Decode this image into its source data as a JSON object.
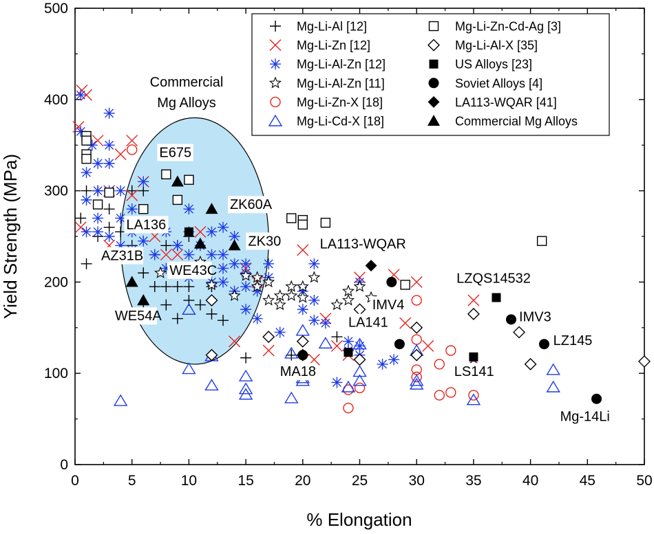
{
  "chart_data": {
    "type": "scatter",
    "title": "",
    "xlabel": "% Elongation",
    "ylabel": "Yield Strength (MPa)",
    "xlim": [
      0,
      50
    ],
    "ylim": [
      0,
      500
    ],
    "xticks": [
      "0",
      "5",
      "10",
      "15",
      "20",
      "25",
      "30",
      "35",
      "40",
      "45",
      "50"
    ],
    "yticks": [
      "0",
      "100",
      "200",
      "300",
      "400",
      "500"
    ],
    "legend_position": "top-right",
    "region": {
      "label_line1": "Commercial",
      "label_line2": "Mg Alloys",
      "color": "#bde3f7",
      "cx": 10.5,
      "cy": 245,
      "rx": 6.5,
      "ry": 135
    },
    "series": [
      {
        "name": "Mg-Li-Al [12]",
        "marker": "plus",
        "color": "#000000",
        "points": [
          [
            0.5,
            270
          ],
          [
            1,
            300
          ],
          [
            1,
            220
          ],
          [
            2,
            300
          ],
          [
            2,
            250
          ],
          [
            3,
            280
          ],
          [
            3,
            260
          ],
          [
            4,
            255
          ],
          [
            5,
            240
          ],
          [
            5,
            300
          ],
          [
            6,
            300
          ],
          [
            6,
            210
          ],
          [
            6,
            175
          ],
          [
            7,
            230
          ],
          [
            7,
            195
          ],
          [
            8,
            240
          ],
          [
            8,
            195
          ],
          [
            8,
            175
          ],
          [
            9,
            240
          ],
          [
            9,
            195
          ],
          [
            9,
            160
          ],
          [
            10,
            250
          ],
          [
            10,
            195
          ],
          [
            10,
            180
          ],
          [
            11,
            175
          ],
          [
            12,
            195
          ],
          [
            12,
            165
          ],
          [
            13,
            158
          ],
          [
            15,
            117
          ],
          [
            19,
            120
          ],
          [
            23,
            140
          ]
        ]
      },
      {
        "name": "Mg-Li-Zn [12]",
        "marker": "x",
        "color": "#e8231d",
        "points": [
          [
            0.3,
            370
          ],
          [
            0.5,
            260
          ],
          [
            0.6,
            410
          ],
          [
            1,
            405
          ],
          [
            2,
            355
          ],
          [
            3,
            300
          ],
          [
            3,
            240
          ],
          [
            4,
            340
          ],
          [
            5,
            355
          ],
          [
            5,
            295
          ],
          [
            6,
            310
          ],
          [
            7,
            250
          ],
          [
            8,
            230
          ],
          [
            9,
            230
          ],
          [
            11,
            255
          ],
          [
            14,
            135
          ],
          [
            15,
            215
          ],
          [
            16,
            200
          ],
          [
            17,
            125
          ],
          [
            20,
            235
          ],
          [
            21,
            115
          ],
          [
            22,
            160
          ],
          [
            23,
            130
          ],
          [
            24,
            120
          ],
          [
            25,
            205
          ],
          [
            28,
            208
          ],
          [
            30,
            200
          ],
          [
            29,
            155
          ],
          [
            31,
            130
          ],
          [
            35,
            180
          ]
        ]
      },
      {
        "name": "Mg-Li-Al-Zn [12]",
        "marker": "asterisk",
        "color": "#1f3be6",
        "points": [
          [
            0.5,
            405
          ],
          [
            0.5,
            365
          ],
          [
            1,
            320
          ],
          [
            1,
            290
          ],
          [
            1,
            255
          ],
          [
            1.5,
            350
          ],
          [
            2,
            330
          ],
          [
            2,
            300
          ],
          [
            2,
            270
          ],
          [
            2,
            255
          ],
          [
            3,
            385
          ],
          [
            3,
            350
          ],
          [
            3,
            330
          ],
          [
            3,
            300
          ],
          [
            3,
            250
          ],
          [
            4,
            300
          ],
          [
            4,
            270
          ],
          [
            4,
            240
          ],
          [
            5,
            280
          ],
          [
            5,
            255
          ],
          [
            5,
            235
          ],
          [
            6,
            310
          ],
          [
            6,
            265
          ],
          [
            6,
            245
          ],
          [
            7,
            230
          ],
          [
            8,
            255
          ],
          [
            8,
            215
          ],
          [
            9,
            240
          ],
          [
            9,
            210
          ],
          [
            10,
            280
          ],
          [
            10,
            255
          ],
          [
            10,
            230
          ],
          [
            10,
            205
          ],
          [
            11,
            240
          ],
          [
            11,
            215
          ],
          [
            12,
            255
          ],
          [
            12,
            230
          ],
          [
            12,
            200
          ],
          [
            13,
            260
          ],
          [
            13,
            230
          ],
          [
            13,
            215
          ],
          [
            13,
            200
          ],
          [
            14,
            250
          ],
          [
            14,
            220
          ],
          [
            14,
            190
          ],
          [
            15,
            220
          ],
          [
            15,
            210
          ],
          [
            15,
            195
          ],
          [
            15,
            170
          ],
          [
            16,
            190
          ],
          [
            16,
            160
          ],
          [
            17,
            220
          ],
          [
            17,
            205
          ],
          [
            18,
            145
          ],
          [
            20,
            190
          ],
          [
            20,
            170
          ],
          [
            21,
            220
          ],
          [
            21,
            180
          ],
          [
            21,
            158
          ],
          [
            22,
            155
          ],
          [
            23,
            90
          ],
          [
            24,
            135
          ],
          [
            24,
            125
          ],
          [
            25,
            200
          ],
          [
            25,
            130
          ],
          [
            25,
            120
          ],
          [
            27,
            110
          ],
          [
            28,
            115
          ]
        ]
      },
      {
        "name": "Mg-Li-Al-Zn [11]",
        "marker": "star",
        "color": "#000000",
        "points": [
          [
            7.5,
            210
          ],
          [
            11,
            222
          ],
          [
            12,
            197
          ],
          [
            14,
            185
          ],
          [
            15,
            207
          ],
          [
            16,
            205
          ],
          [
            16,
            195
          ],
          [
            17,
            200
          ],
          [
            17,
            180
          ],
          [
            18,
            185
          ],
          [
            18,
            175
          ],
          [
            19,
            195
          ],
          [
            19,
            185
          ],
          [
            20,
            195
          ],
          [
            20,
            183
          ],
          [
            21,
            205
          ],
          [
            23,
            175
          ],
          [
            24,
            180
          ],
          [
            24,
            190
          ],
          [
            25,
            195
          ],
          [
            26,
            183
          ],
          [
            27,
            177
          ]
        ]
      },
      {
        "name": "Mg-Li-Zn-X [18]",
        "marker": "circle-open",
        "color": "#e8231d",
        "points": [
          [
            5,
            345
          ],
          [
            24,
            82
          ],
          [
            24,
            62
          ],
          [
            25,
            84
          ],
          [
            30,
            180
          ],
          [
            30,
            137
          ],
          [
            30,
            104
          ],
          [
            30,
            96
          ],
          [
            32,
            110
          ],
          [
            32,
            76
          ],
          [
            33,
            125
          ],
          [
            33,
            79
          ],
          [
            35,
            108
          ],
          [
            35,
            76
          ]
        ]
      },
      {
        "name": "Mg-Li-Cd-X [18]",
        "marker": "triangle-open",
        "color": "#1f3be6",
        "points": [
          [
            4,
            70
          ],
          [
            10,
            105
          ],
          [
            10,
            170
          ],
          [
            12,
            87
          ],
          [
            12,
            119
          ],
          [
            15,
            97
          ],
          [
            15,
            83
          ],
          [
            15,
            77
          ],
          [
            19,
            73
          ],
          [
            19,
            122
          ],
          [
            20,
            92
          ],
          [
            20,
            95
          ],
          [
            20,
            147
          ],
          [
            22,
            133
          ],
          [
            24,
            85
          ],
          [
            25,
            92
          ],
          [
            25,
            102
          ],
          [
            25,
            132
          ],
          [
            30,
            88
          ],
          [
            30,
            92
          ],
          [
            30,
            125
          ],
          [
            35,
            71
          ],
          [
            35,
            110
          ],
          [
            42,
            104
          ],
          [
            42,
            85
          ]
        ]
      },
      {
        "name": "Mg-Li-Zn-Cd-Ag [3]",
        "marker": "square-open",
        "color": "#000000",
        "points": [
          [
            1,
            360
          ],
          [
            1,
            355
          ],
          [
            1,
            340
          ],
          [
            1,
            335
          ],
          [
            2,
            285
          ],
          [
            3,
            298
          ],
          [
            6,
            280
          ],
          [
            8,
            318
          ],
          [
            9,
            290
          ],
          [
            10,
            312
          ],
          [
            19,
            270
          ],
          [
            20,
            268
          ],
          [
            20,
            263
          ],
          [
            22,
            265
          ],
          [
            29,
            197
          ],
          [
            41,
            245
          ]
        ]
      },
      {
        "name": "Mg-Li-Al-X [35]",
        "marker": "diamond-open",
        "color": "#000000",
        "points": [
          [
            12,
            180
          ],
          [
            12,
            120
          ],
          [
            17,
            140
          ],
          [
            20,
            135
          ],
          [
            20,
            120
          ],
          [
            25,
            170
          ],
          [
            25,
            115
          ],
          [
            30,
            150
          ],
          [
            30,
            120
          ],
          [
            35,
            165
          ],
          [
            39,
            145
          ],
          [
            40,
            110
          ],
          [
            50,
            113
          ]
        ]
      },
      {
        "name": "US Alloys [23]",
        "marker": "square-filled",
        "color": "#000000",
        "points": [
          [
            24,
            123
          ],
          [
            35,
            118
          ],
          [
            37,
            183
          ]
        ]
      },
      {
        "name": "Soviet Alloys [4]",
        "marker": "circle-filled",
        "color": "#000000",
        "points": [
          [
            20,
            120
          ],
          [
            27.8,
            200
          ],
          [
            28.5,
            132
          ],
          [
            38.3,
            159
          ],
          [
            41.2,
            132
          ],
          [
            45.8,
            72
          ]
        ]
      },
      {
        "name": "LA113-WQAR [41]",
        "marker": "diamond-filled",
        "color": "#000000",
        "points": [
          [
            26,
            218
          ]
        ]
      },
      {
        "name": "Commercial Mg Alloys",
        "marker": "triangle-filled",
        "color": "#000000",
        "points": [
          [
            9,
            310
          ],
          [
            12,
            280
          ],
          [
            11,
            242
          ],
          [
            14,
            240
          ],
          [
            5,
            200
          ],
          [
            6,
            180
          ]
        ]
      },
      {
        "name": "",
        "marker": "square-filled",
        "color": "#000000",
        "legend": false,
        "points": [
          [
            10,
            255
          ]
        ]
      }
    ],
    "annotations": [
      {
        "text": "E675",
        "x": 7.4,
        "y": 337
      },
      {
        "text": "ZK60A",
        "x": 13.6,
        "y": 280
      },
      {
        "text": "LA136",
        "x": 4.5,
        "y": 258
      },
      {
        "text": "ZK30",
        "x": 15.2,
        "y": 240
      },
      {
        "text": "AZ31B",
        "x": 2.3,
        "y": 224
      },
      {
        "text": "WE43C",
        "x": 8.3,
        "y": 208
      },
      {
        "text": "WE54A",
        "x": 3.5,
        "y": 158
      },
      {
        "text": "LA113-WQAR",
        "x": 21.5,
        "y": 237
      },
      {
        "text": "LZQS14532",
        "x": 33.5,
        "y": 199
      },
      {
        "text": "IMV4",
        "x": 26.1,
        "y": 170
      },
      {
        "text": "IMV3",
        "x": 39.0,
        "y": 157
      },
      {
        "text": "LA141",
        "x": 24.0,
        "y": 151
      },
      {
        "text": "LZ145",
        "x": 42.0,
        "y": 131
      },
      {
        "text": "MA18",
        "x": 18.0,
        "y": 97
      },
      {
        "text": "LS141",
        "x": 33.3,
        "y": 97
      },
      {
        "text": "Mg-14Li",
        "x": 42.6,
        "y": 48
      }
    ]
  }
}
